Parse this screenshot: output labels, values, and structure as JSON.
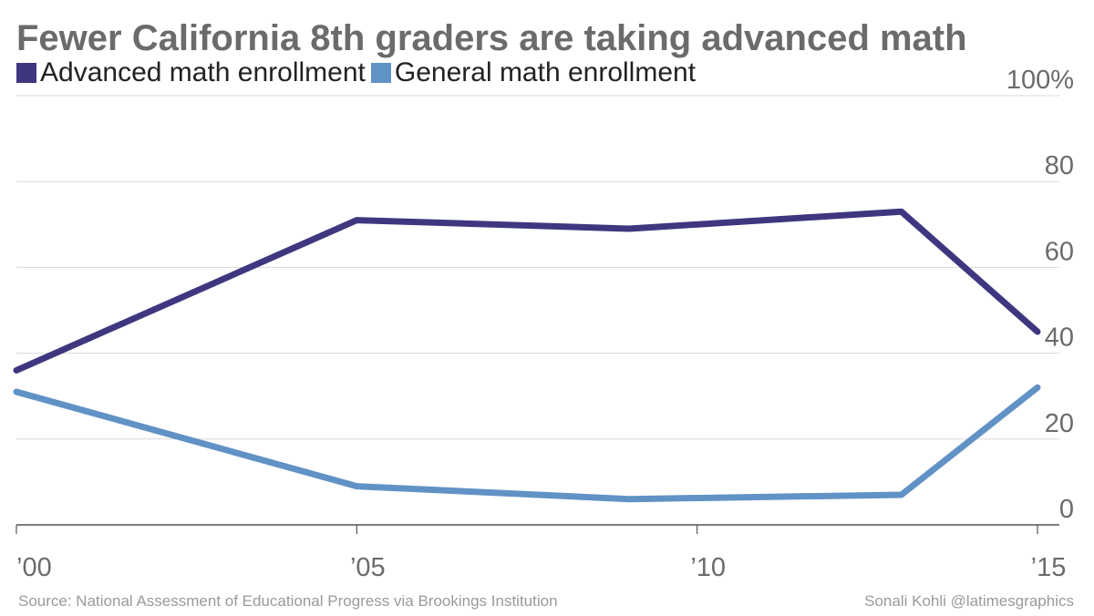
{
  "colors": {
    "advanced": "#3e3780",
    "general": "#6192c6",
    "grid": "#d9d9d9",
    "baseline": "#555555",
    "tick_text": "#6b6b6b"
  },
  "chart_data": {
    "type": "line",
    "title": "Fewer California 8th graders are taking advanced math",
    "x": [
      2000,
      2005,
      2009,
      2013,
      2015
    ],
    "x_ticks": [
      {
        "value": 2000,
        "label": "’00"
      },
      {
        "value": 2005,
        "label": "’05"
      },
      {
        "value": 2010,
        "label": "’10"
      },
      {
        "value": 2015,
        "label": "’15"
      }
    ],
    "xlim": [
      2000,
      2015
    ],
    "y_ticks": [
      {
        "value": 0,
        "label": "0"
      },
      {
        "value": 20,
        "label": "20"
      },
      {
        "value": 40,
        "label": "40"
      },
      {
        "value": 60,
        "label": "60"
      },
      {
        "value": 80,
        "label": "80"
      },
      {
        "value": 100,
        "label": "100%"
      }
    ],
    "ylim": [
      0,
      100
    ],
    "grid": true,
    "legend_position": "top-left",
    "series": [
      {
        "name": "Advanced math enrollment",
        "color": "#3e3780",
        "values": [
          36,
          71,
          69,
          73,
          45
        ]
      },
      {
        "name": "General math enrollment",
        "color": "#6192c6",
        "values": [
          31,
          9,
          6,
          7,
          32
        ]
      }
    ]
  },
  "footer": {
    "source": "Source: National Assessment of Educational Progress via Brookings Institution",
    "credit": "Sonali Kohli @latimesgraphics"
  }
}
